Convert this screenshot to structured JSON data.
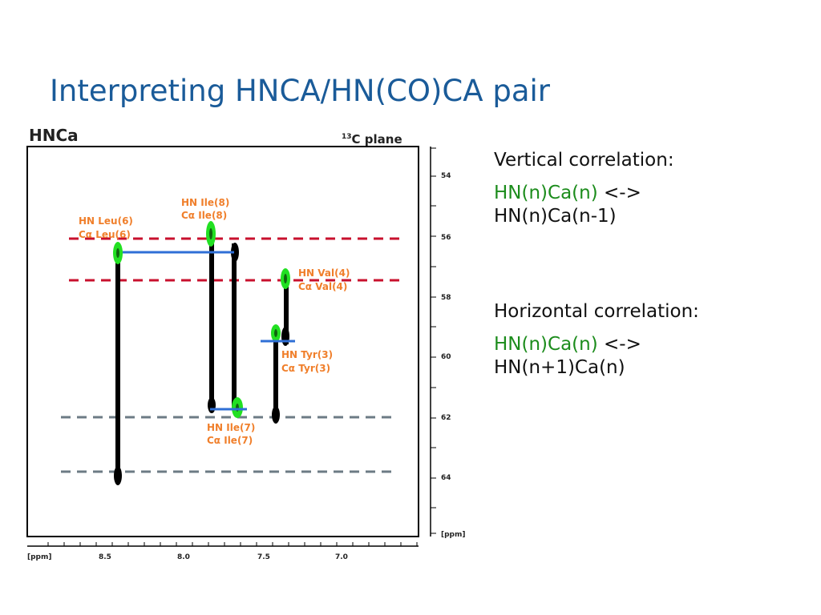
{
  "slide": {
    "title": "Interpreting HNCA/HN(CO)CA pair"
  },
  "figure": {
    "title": "HNCa",
    "plane_label": "C plane",
    "plane_superscript": "13",
    "x_axis_unit": "[ppm]",
    "y_axis_unit": "[ppm]",
    "x_ticks": [
      "8.5",
      "8.0",
      "7.5",
      "7.0"
    ],
    "y_ticks": [
      "54",
      "56",
      "58",
      "60",
      "62",
      "64"
    ],
    "labels": {
      "leu6_hn": "HN Leu(6)",
      "leu6_ca": "Cα Leu(6)",
      "ile8_hn": "HN Ile(8)",
      "ile8_ca": "Cα Ile(8)",
      "val4_hn": "HN Val(4)",
      "val4_ca": "Cα Val(4)",
      "tyr3_hn": "HN Tyr(3)",
      "tyr3_ca": "Cα Tyr(3)",
      "ile7_hn": "HN Ile(7)",
      "ile7_ca": "Cα Ile(7)"
    },
    "colors": {
      "label": "#f07f2b",
      "red_dash": "#c8102e",
      "gray_dash": "#6d7b85",
      "blue_link": "#2f6fd6",
      "green_peak": "#22e022",
      "strip": "#000000"
    }
  },
  "text": {
    "vertical_heading": "Vertical correlation:",
    "vertical_green": "HN(n)Ca(n)",
    "vertical_arrow": " <->",
    "vertical_line2": "HN(n)Ca(n-1)",
    "horizontal_heading": "Horizontal correlation:",
    "horizontal_green": "HN(n)Ca(n)",
    "horizontal_arrow": " <->",
    "horizontal_line2": "HN(n+1)Ca(n)"
  }
}
